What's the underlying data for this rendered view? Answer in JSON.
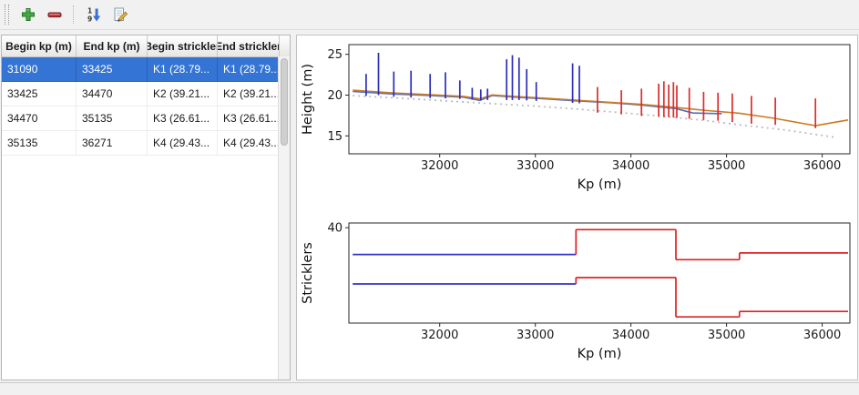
{
  "window": {
    "background": "#f1f1f1"
  },
  "toolbar": {
    "buttons": [
      {
        "name": "add",
        "icon": "plus-icon"
      },
      {
        "name": "remove",
        "icon": "minus-icon"
      },
      {
        "name": "sort",
        "icon": "sort-numeric-icon"
      },
      {
        "name": "edit",
        "icon": "edit-pencil-icon"
      }
    ]
  },
  "table": {
    "columns": [
      "Begin kp (m)",
      "End kp (m)",
      "Begin strickler",
      "End strickler"
    ],
    "rows": [
      {
        "cells": [
          "31090",
          "33425",
          "K1 (28.79...",
          "K1 (28.79..."
        ],
        "selected": true
      },
      {
        "cells": [
          "33425",
          "34470",
          "K2 (39.21...",
          "K2 (39.21..."
        ],
        "selected": false
      },
      {
        "cells": [
          "34470",
          "35135",
          "K3 (26.61...",
          "K3 (26.61..."
        ],
        "selected": false
      },
      {
        "cells": [
          "35135",
          "36271",
          "K4 (29.43...",
          "K4 (29.43..."
        ],
        "selected": false
      }
    ],
    "selection_color": "#3474d4",
    "selection_text_color": "#ffffff"
  },
  "colors": {
    "line_blue": "#4a6fc8",
    "line_orange": "#cc7a22",
    "line_gray_dotted": "#bcbcbc",
    "spike_blue": "#2d2dbb",
    "spike_red": "#dd2b2b",
    "step_blue": "#3232c8",
    "step_red": "#dd2222"
  },
  "chart_data": [
    {
      "name": "height-chart",
      "type": "line",
      "title": "",
      "xlabel": "Kp (m)",
      "ylabel": "Height (m)",
      "xlim": [
        31050,
        36290
      ],
      "ylim": [
        12.8,
        26.2
      ],
      "xticks": [
        32000,
        33000,
        34000,
        35000,
        36000
      ],
      "yticks": [
        15,
        20,
        25
      ],
      "grid": false,
      "legend": "none",
      "series": [
        {
          "name": "bed-profile-dotted",
          "type": "line",
          "color": "#bcbcbc",
          "dash": "2 4",
          "width": 1.8,
          "points": [
            [
              31090,
              19.95
            ],
            [
              31700,
              19.55
            ],
            [
              32400,
              19.05
            ],
            [
              33000,
              18.65
            ],
            [
              33425,
              18.3
            ],
            [
              34000,
              17.75
            ],
            [
              34470,
              17.25
            ],
            [
              34800,
              16.85
            ],
            [
              35135,
              16.35
            ],
            [
              35600,
              15.75
            ],
            [
              36150,
              14.8
            ]
          ]
        },
        {
          "name": "water-line-blue",
          "type": "line",
          "color": "#4a6fc8",
          "width": 1.6,
          "points": [
            [
              31090,
              20.45
            ],
            [
              31500,
              20.15
            ],
            [
              31900,
              19.95
            ],
            [
              32250,
              19.75
            ],
            [
              32420,
              19.35
            ],
            [
              32550,
              19.95
            ],
            [
              32800,
              19.75
            ],
            [
              33100,
              19.55
            ],
            [
              33425,
              19.3
            ],
            [
              33800,
              19.05
            ],
            [
              34100,
              18.8
            ],
            [
              34470,
              18.35
            ],
            [
              34650,
              17.8
            ],
            [
              34950,
              17.72
            ]
          ]
        },
        {
          "name": "water-line-orange",
          "type": "line",
          "color": "#cc7a22",
          "width": 1.6,
          "points": [
            [
              31090,
              20.62
            ],
            [
              31500,
              20.28
            ],
            [
              31900,
              20.05
            ],
            [
              32250,
              19.85
            ],
            [
              32420,
              19.55
            ],
            [
              32550,
              20.02
            ],
            [
              32800,
              19.82
            ],
            [
              33100,
              19.62
            ],
            [
              33425,
              19.38
            ],
            [
              33800,
              19.1
            ],
            [
              34100,
              18.88
            ],
            [
              34470,
              18.48
            ],
            [
              34800,
              18.1
            ],
            [
              35135,
              17.78
            ],
            [
              35500,
              17.15
            ],
            [
              35930,
              16.25
            ],
            [
              36271,
              16.95
            ]
          ]
        },
        {
          "name": "left-bank-spikes",
          "type": "vlines",
          "color": "#2d2dbb",
          "width": 1.7,
          "lines": [
            [
              31230,
              19.9,
              22.6
            ],
            [
              31360,
              20.0,
              25.2
            ],
            [
              31520,
              19.8,
              22.9
            ],
            [
              31700,
              19.7,
              23.0
            ],
            [
              31900,
              19.65,
              22.6
            ],
            [
              32060,
              19.6,
              22.8
            ],
            [
              32210,
              19.55,
              21.8
            ],
            [
              32340,
              19.45,
              20.9
            ],
            [
              32430,
              19.35,
              20.7
            ],
            [
              32500,
              19.4,
              20.8
            ],
            [
              32700,
              19.4,
              24.4
            ],
            [
              32760,
              19.4,
              24.9
            ],
            [
              32830,
              19.4,
              24.6
            ],
            [
              32910,
              19.35,
              23.2
            ],
            [
              33010,
              19.3,
              21.6
            ],
            [
              33390,
              19.05,
              23.9
            ],
            [
              33460,
              19.0,
              23.6
            ]
          ]
        },
        {
          "name": "right-bank-spikes",
          "type": "vlines",
          "color": "#dd2b2b",
          "width": 1.7,
          "lines": [
            [
              33650,
              17.85,
              21.0
            ],
            [
              33900,
              17.65,
              20.6
            ],
            [
              34110,
              17.45,
              20.8
            ],
            [
              34290,
              17.35,
              21.4
            ],
            [
              34345,
              17.3,
              21.7
            ],
            [
              34395,
              17.3,
              21.3
            ],
            [
              34445,
              17.25,
              21.6
            ],
            [
              34480,
              17.2,
              21.2
            ],
            [
              34610,
              17.1,
              20.9
            ],
            [
              34760,
              16.95,
              20.4
            ],
            [
              34910,
              16.85,
              20.3
            ],
            [
              35060,
              16.7,
              20.2
            ],
            [
              35260,
              16.5,
              19.9
            ],
            [
              35510,
              16.35,
              19.7
            ],
            [
              35930,
              15.95,
              19.6
            ]
          ]
        }
      ]
    },
    {
      "name": "stricklers-chart",
      "type": "step",
      "title": "",
      "xlabel": "Kp (m)",
      "ylabel": "Stricklers",
      "xlim": [
        31050,
        36290
      ],
      "ylim": [
        0,
        42
      ],
      "xticks": [
        32000,
        33000,
        34000,
        35000,
        36000
      ],
      "yticks": [
        40
      ],
      "grid": false,
      "legend": "none",
      "series": [
        {
          "name": "strickler-upper-steps",
          "type": "steps",
          "segments": [
            {
              "x0": 31090,
              "x1": 33425,
              "y": 28.79,
              "color": "#3232c8"
            },
            {
              "x0": 33425,
              "x1": 34470,
              "y": 39.21,
              "color": "#dd2222"
            },
            {
              "x0": 34470,
              "x1": 35135,
              "y": 26.61,
              "color": "#dd2222"
            },
            {
              "x0": 35135,
              "x1": 36271,
              "y": 29.43,
              "color": "#dd2222"
            }
          ]
        },
        {
          "name": "strickler-lower-steps",
          "type": "steps",
          "segments": [
            {
              "x0": 31090,
              "x1": 33425,
              "y": 16.4,
              "color": "#3232c8"
            },
            {
              "x0": 33425,
              "x1": 34470,
              "y": 19.1,
              "color": "#dd2222"
            },
            {
              "x0": 34470,
              "x1": 35135,
              "y": 2.6,
              "color": "#dd2222"
            },
            {
              "x0": 35135,
              "x1": 36271,
              "y": 4.9,
              "color": "#dd2222"
            }
          ]
        }
      ]
    }
  ]
}
